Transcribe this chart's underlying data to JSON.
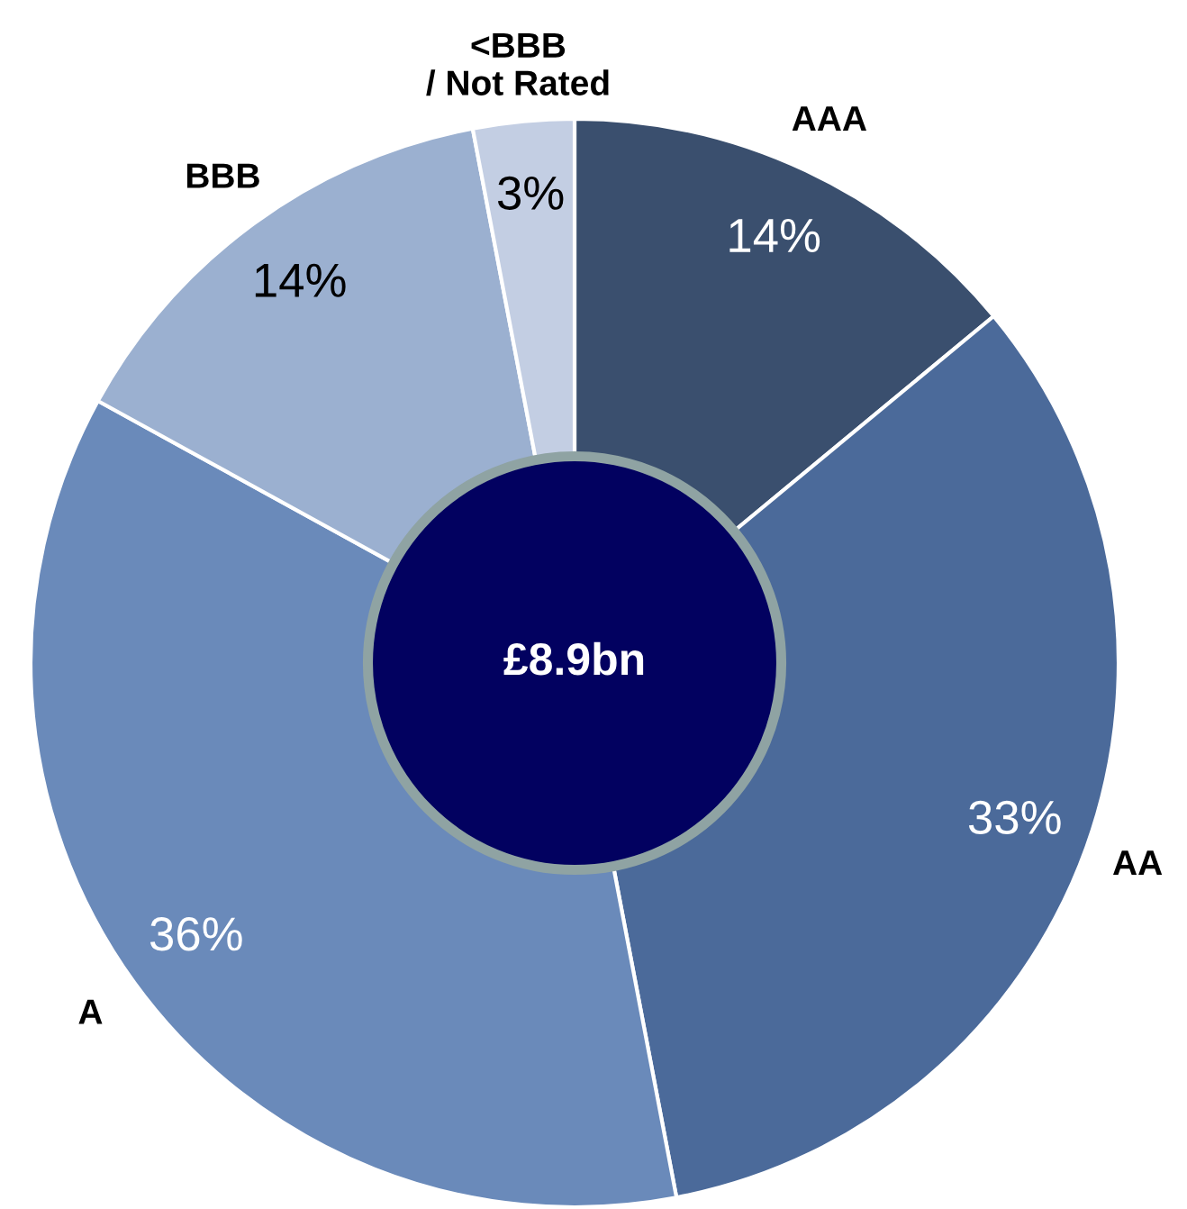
{
  "chart_data": {
    "type": "donut",
    "categories": [
      "AAA",
      "AA",
      "A",
      "BBB",
      "<BBB\n/ Not Rated"
    ],
    "values": [
      14,
      33,
      36,
      14,
      3
    ],
    "colors": [
      "#3a4f6e",
      "#4b6a9a",
      "#6a8aba",
      "#9bb0d0",
      "#c3cee3"
    ],
    "value_labels": [
      "14%",
      "33%",
      "36%",
      "14%",
      "3%"
    ],
    "annotations": [
      "£8.9bn"
    ]
  }
}
